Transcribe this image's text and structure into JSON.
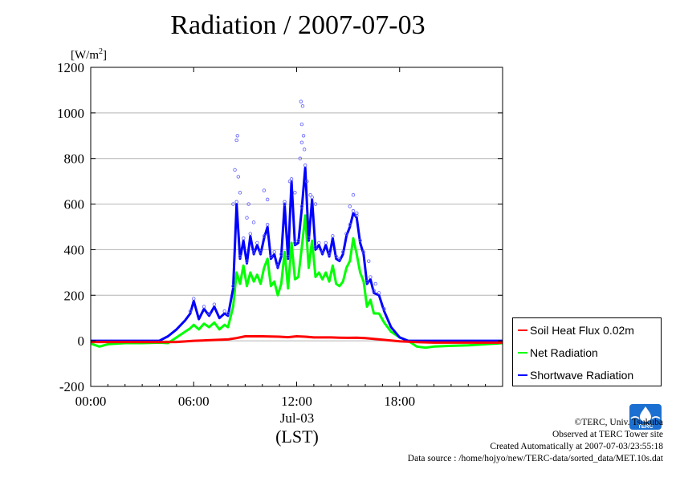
{
  "chart_data": {
    "type": "line",
    "title": "Radiation / 2007-07-03",
    "ylabel_prefix": "[W/m",
    "ylabel_sup": "2",
    "ylabel_suffix": "]",
    "ylim": [
      -200,
      1200
    ],
    "yticks": [
      -200,
      0,
      200,
      400,
      600,
      800,
      1000,
      1200
    ],
    "xlim": [
      0,
      24
    ],
    "xticks": [
      {
        "hour": 0,
        "label": "00:00"
      },
      {
        "hour": 6,
        "label": "06:00"
      },
      {
        "hour": 12,
        "label": "12:00"
      },
      {
        "hour": 18,
        "label": "18:00"
      }
    ],
    "xlabel_date": "Jul-03",
    "xlabel_tz": "(LST)",
    "grid": "horizontal",
    "legend_position": "bottom-right, outside plot",
    "series": [
      {
        "name": "Soil Heat Flux 0.02m",
        "color": "#ff0000",
        "x": [
          0,
          2,
          4,
          5,
          6,
          7,
          8,
          8.5,
          9,
          10,
          11,
          11.5,
          12,
          12.5,
          13,
          14,
          14.5,
          15,
          15.5,
          16,
          17,
          18,
          19,
          20,
          22,
          24
        ],
        "y": [
          -5,
          -5,
          -6,
          -5,
          0,
          3,
          6,
          12,
          20,
          20,
          18,
          16,
          20,
          18,
          15,
          15,
          14,
          13,
          14,
          12,
          5,
          -2,
          -6,
          -8,
          -8,
          -8
        ]
      },
      {
        "name": "Net Radiation",
        "color": "#00ff00",
        "x": [
          0,
          0.5,
          1,
          1.5,
          2,
          3,
          4,
          4.5,
          5,
          5.5,
          5.8,
          6,
          6.3,
          6.6,
          6.9,
          7.2,
          7.5,
          7.8,
          8.0,
          8.3,
          8.5,
          8.7,
          8.9,
          9.1,
          9.3,
          9.5,
          9.7,
          9.9,
          10.1,
          10.3,
          10.5,
          10.7,
          10.9,
          11.1,
          11.3,
          11.5,
          11.7,
          11.9,
          12.1,
          12.3,
          12.5,
          12.7,
          12.9,
          13.1,
          13.3,
          13.5,
          13.7,
          13.9,
          14.1,
          14.3,
          14.5,
          14.7,
          14.9,
          15.1,
          15.3,
          15.5,
          15.7,
          15.9,
          16.1,
          16.3,
          16.5,
          16.8,
          17.1,
          17.5,
          18,
          18.5,
          19,
          19.5,
          20,
          21,
          22,
          23,
          24
        ],
        "y": [
          -12,
          -25,
          -15,
          -12,
          -10,
          -10,
          -8,
          -10,
          15,
          40,
          55,
          70,
          50,
          75,
          60,
          80,
          50,
          70,
          60,
          150,
          300,
          250,
          330,
          240,
          300,
          260,
          290,
          250,
          320,
          360,
          240,
          260,
          200,
          250,
          390,
          230,
          430,
          270,
          280,
          410,
          550,
          320,
          440,
          280,
          300,
          270,
          300,
          260,
          330,
          250,
          240,
          260,
          320,
          350,
          450,
          380,
          300,
          260,
          150,
          180,
          120,
          120,
          80,
          40,
          15,
          0,
          -25,
          -30,
          -25,
          -22,
          -20,
          -15,
          -10
        ]
      },
      {
        "name": "Shortwave Radiation",
        "color": "#0000ff",
        "x": [
          0,
          1,
          2,
          3,
          4,
          4.5,
          5,
          5.5,
          5.8,
          6,
          6.3,
          6.6,
          6.9,
          7.2,
          7.5,
          7.8,
          8.0,
          8.3,
          8.5,
          8.7,
          8.9,
          9.1,
          9.3,
          9.5,
          9.7,
          9.9,
          10.1,
          10.3,
          10.5,
          10.7,
          10.9,
          11.1,
          11.3,
          11.5,
          11.7,
          11.9,
          12.1,
          12.3,
          12.5,
          12.7,
          12.9,
          13.1,
          13.3,
          13.5,
          13.7,
          13.9,
          14.1,
          14.3,
          14.5,
          14.7,
          14.9,
          15.1,
          15.3,
          15.5,
          15.7,
          15.9,
          16.1,
          16.3,
          16.5,
          16.8,
          17.1,
          17.5,
          18,
          18.5,
          19,
          19.5,
          20,
          21,
          22,
          23,
          24
        ],
        "y": [
          0,
          0,
          0,
          0,
          0,
          20,
          50,
          90,
          120,
          175,
          95,
          140,
          110,
          150,
          100,
          120,
          110,
          230,
          600,
          360,
          440,
          340,
          460,
          380,
          420,
          380,
          450,
          500,
          360,
          380,
          320,
          370,
          600,
          360,
          700,
          420,
          430,
          580,
          760,
          440,
          620,
          400,
          420,
          380,
          420,
          370,
          450,
          360,
          350,
          380,
          460,
          500,
          560,
          540,
          430,
          380,
          250,
          270,
          210,
          200,
          130,
          60,
          15,
          0,
          0,
          0,
          0,
          0,
          0,
          0,
          0
        ]
      }
    ],
    "shortwave_scatter_hi": [
      [
        8.5,
        880
      ],
      [
        8.55,
        900
      ],
      [
        8.4,
        750
      ],
      [
        8.6,
        720
      ],
      [
        8.3,
        600
      ],
      [
        8.7,
        650
      ],
      [
        9.1,
        540
      ],
      [
        9.2,
        600
      ],
      [
        9.5,
        520
      ],
      [
        10.1,
        660
      ],
      [
        10.3,
        620
      ],
      [
        11.3,
        600
      ],
      [
        11.6,
        700
      ],
      [
        11.9,
        650
      ],
      [
        12.2,
        800
      ],
      [
        12.3,
        950
      ],
      [
        12.25,
        1050
      ],
      [
        12.35,
        1030
      ],
      [
        12.4,
        900
      ],
      [
        12.3,
        870
      ],
      [
        12.45,
        840
      ],
      [
        12.6,
        700
      ],
      [
        12.8,
        640
      ],
      [
        13.1,
        600
      ],
      [
        15.1,
        590
      ],
      [
        15.3,
        640
      ],
      [
        15.5,
        560
      ],
      [
        16.2,
        350
      ],
      [
        16.6,
        250
      ]
    ],
    "logo_text": "TERC",
    "credits": [
      "©TERC, Univ. Tsukuba",
      "Observed at TERC Tower site",
      "Created Automatically at 2007-07-03/23:55:18",
      "Data source : /home/hojyo/new/TERC-data/sorted_data/MET.10s.dat"
    ]
  }
}
